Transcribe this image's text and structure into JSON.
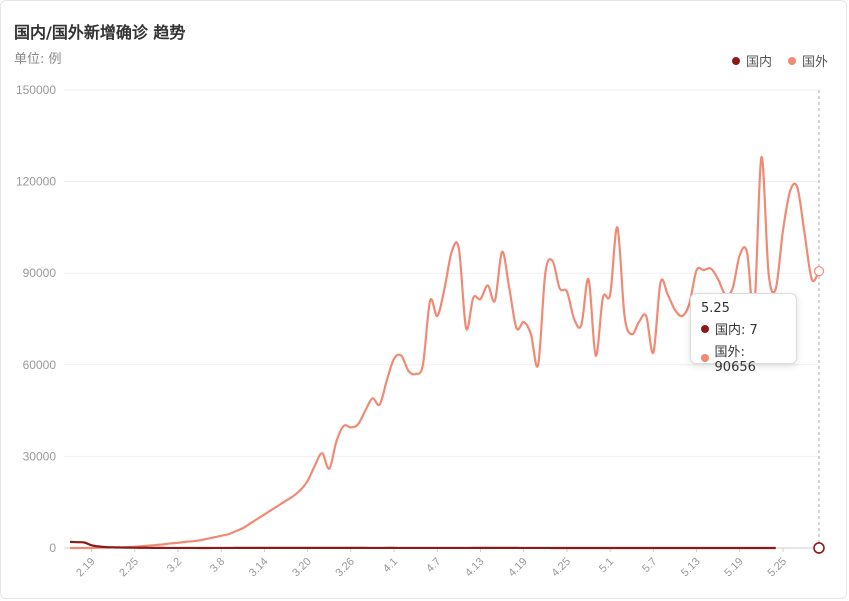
{
  "header": {
    "title": "国内/国外新增确诊 趋势",
    "unit_label": "单位: 例"
  },
  "legend": [
    {
      "label": "国内",
      "color": "#8b1a1a"
    },
    {
      "label": "国外",
      "color": "#f08a74"
    }
  ],
  "tooltip": {
    "date": "5.25",
    "rows": [
      {
        "label": "国内: 7",
        "color": "#8b1a1a"
      },
      {
        "label": "国外: 90656",
        "color": "#f08a74"
      }
    ]
  },
  "chart_data": {
    "type": "line",
    "title": "国内/国外新增确诊 趋势",
    "ylabel": "单位: 例",
    "ylim": [
      0,
      150000
    ],
    "y_ticks": [
      0,
      30000,
      60000,
      90000,
      120000,
      150000
    ],
    "x_tick_labels": [
      "2.19",
      "2.25",
      "3.2",
      "3.8",
      "3.14",
      "3.20",
      "3.26",
      "4.1",
      "4.7",
      "4.13",
      "4.19",
      "4.25",
      "5.1",
      "5.7",
      "5.13",
      "5.19",
      "5.25"
    ],
    "grid": true,
    "legend_position": "top-right",
    "series": [
      {
        "name": "国内",
        "color": "#8b1a1a",
        "x_start": "2.16",
        "values": [
          2000,
          1900,
          1800,
          900,
          500,
          300,
          200,
          150,
          120,
          100,
          80,
          60,
          40,
          30,
          20,
          20,
          15,
          15,
          10,
          10,
          15,
          20,
          25,
          30,
          35,
          40,
          50,
          50,
          50,
          40,
          40,
          35,
          30,
          30,
          30,
          40,
          50,
          50,
          40,
          40,
          30,
          30,
          20,
          20,
          30,
          30,
          20,
          20,
          20,
          20,
          20,
          20,
          20,
          20,
          20,
          20,
          30,
          30,
          40,
          50,
          40,
          30,
          30,
          20,
          20,
          15,
          15,
          10,
          10,
          10,
          10,
          10,
          10,
          10,
          10,
          10,
          10,
          10,
          10,
          10,
          10,
          10,
          10,
          10,
          10,
          10,
          10,
          10,
          10,
          10,
          10,
          10,
          10,
          10,
          10,
          10,
          10,
          10,
          7
        ]
      },
      {
        "name": "国外",
        "color": "#f08a74",
        "x_start": "2.16",
        "values": [
          0,
          0,
          0,
          0,
          100,
          100,
          200,
          200,
          300,
          400,
          600,
          800,
          1000,
          1200,
          1500,
          1700,
          2000,
          2200,
          2500,
          3000,
          3500,
          4000,
          4500,
          5500,
          6500,
          8000,
          9500,
          11000,
          12500,
          14000,
          15500,
          17000,
          19000,
          22000,
          27000,
          31000,
          26000,
          35000,
          40000,
          39500,
          40500,
          45000,
          49000,
          47000,
          55000,
          62000,
          63000,
          58000,
          57000,
          60000,
          81000,
          76000,
          85000,
          97000,
          98000,
          72000,
          82000,
          81500,
          86000,
          81000,
          97000,
          85000,
          72000,
          74000,
          70000,
          60000,
          90000,
          94000,
          85000,
          84000,
          75000,
          73000,
          88000,
          63000,
          82000,
          83000,
          105000,
          76000,
          70000,
          74000,
          76000,
          64000,
          87000,
          83000,
          78000,
          76000,
          80000,
          91000,
          91000,
          91500,
          88000,
          83000,
          85000,
          96000,
          97000,
          78000,
          128000,
          90000,
          85000,
          104000,
          117000,
          118000,
          103000,
          88000,
          90656
        ]
      }
    ]
  }
}
